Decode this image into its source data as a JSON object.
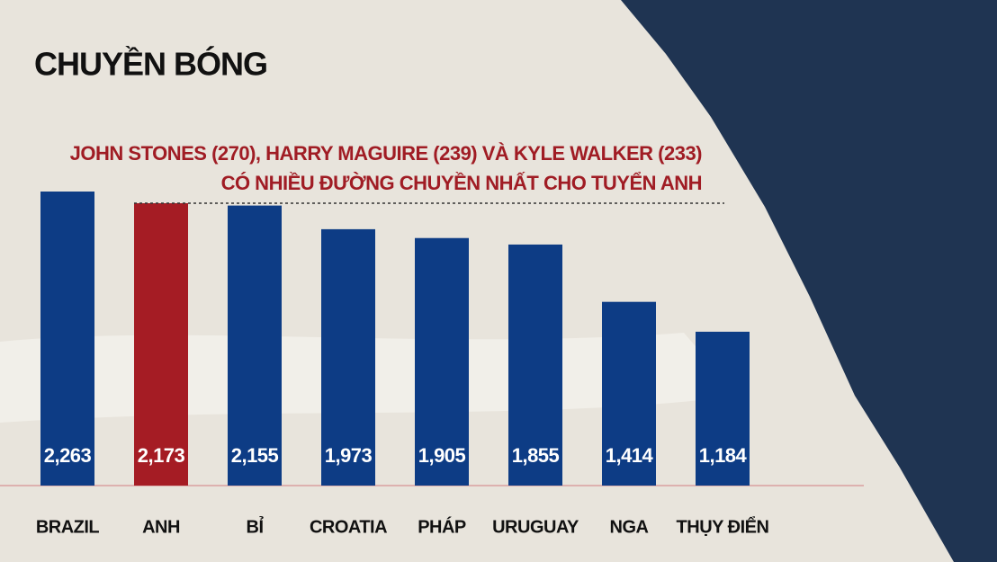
{
  "chart_data": {
    "type": "bar",
    "title": "CHUYỀN BÓNG",
    "annotation": [
      "JOHN STONES (270), HARRY MAGUIRE (239) VÀ KYLE WALKER (233)",
      "CÓ NHIỀU ĐƯỜNG CHUYỀN NHẤT CHO TUYỂN ANH"
    ],
    "categories": [
      "BRAZIL",
      "ANH",
      "BỈ",
      "CROATIA",
      "PHÁP",
      "URUGUAY",
      "NGA",
      "THỤY ĐIỂN"
    ],
    "values": [
      2263,
      2173,
      2155,
      1973,
      1905,
      1855,
      1414,
      1184
    ],
    "value_labels": [
      "2,263",
      "2,173",
      "2,155",
      "1,973",
      "1,905",
      "1,855",
      "1,414",
      "1,184"
    ],
    "colors": [
      "#0d3c85",
      "#a51c24",
      "#0d3c85",
      "#0d3c85",
      "#0d3c85",
      "#0d3c85",
      "#0d3c85",
      "#0d3c85"
    ],
    "highlight_index": 1
  }
}
